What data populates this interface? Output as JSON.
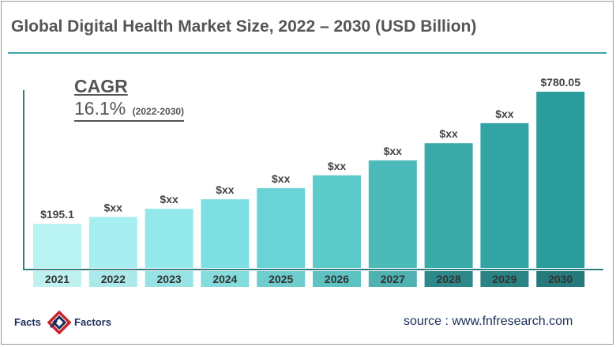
{
  "title": "Global Digital Health Market Size, 2022 – 2030 (USD Billion)",
  "cagr": {
    "label": "CAGR",
    "value": "16.1%",
    "period": "(2022-2030)"
  },
  "chart_data": {
    "type": "bar",
    "title": "Global Digital Health Market Size, 2022 – 2030 (USD Billion)",
    "categories": [
      "2021",
      "2022",
      "2023",
      "2024",
      "2025",
      "2026",
      "2027",
      "2028",
      "2029",
      "2030"
    ],
    "values": [
      195.1,
      226,
      262,
      304,
      353,
      410,
      476,
      552,
      641,
      780.05
    ],
    "data_labels": [
      "$195.1",
      "$xx",
      "$xx",
      "$xx",
      "$xx",
      "$xx",
      "$xx",
      "$xx",
      "$xx",
      "$780.05"
    ],
    "bar_colors": [
      "#b9f3f3",
      "#a6eeef",
      "#93e8ea",
      "#7ddfe1",
      "#69d4d5",
      "#5ecbcb",
      "#4cbab9",
      "#3aaaa9",
      "#32a4a3",
      "#2a9d9c"
    ],
    "tick_box_colors": [
      "#bff1f1",
      "#ace9ea",
      "#97e3e4",
      "#84dcdd",
      "#6fcdce",
      "#5ec1c2",
      "#4fb1b1",
      "#2e8889",
      "#2b8384",
      "#277a7b"
    ],
    "ylim": [
      0,
      800
    ],
    "xlabel": "",
    "ylabel": "",
    "grid": false
  },
  "logo": {
    "left_text": "Facts",
    "right_text": "Factors",
    "colors": {
      "red": "#c8232c",
      "navy": "#1a2e5a"
    }
  },
  "source": "source : www.fnfresearch.com"
}
